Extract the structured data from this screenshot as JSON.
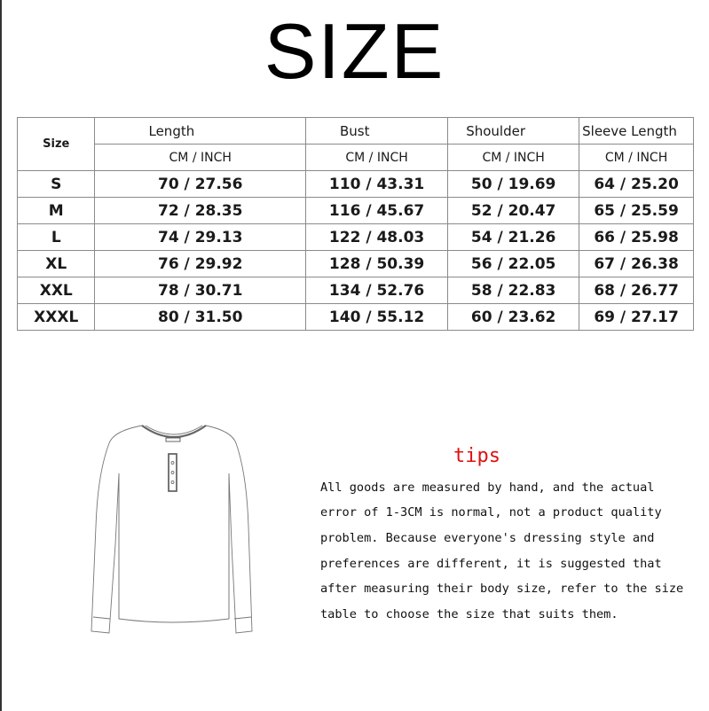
{
  "title": "SIZE",
  "table": {
    "size_header": "Size",
    "columns": [
      "Length",
      "Bust",
      "Shoulder",
      "Sleeve Length"
    ],
    "unit_label": "CM  /  INCH",
    "rows": [
      [
        "S",
        "70 / 27.56",
        "110 / 43.31",
        "50 / 19.69",
        "64 / 25.20"
      ],
      [
        "M",
        "72 / 28.35",
        "116 / 45.67",
        "52 / 20.47",
        "65 / 25.59"
      ],
      [
        "L",
        "74 / 29.13",
        "122 / 48.03",
        "54 / 21.26",
        "66 / 25.98"
      ],
      [
        "XL",
        "76 / 29.92",
        "128 / 50.39",
        "56 / 22.05",
        "67 / 26.38"
      ],
      [
        "XXL",
        "78 / 30.71",
        "134 / 52.76",
        "58 / 22.83",
        "68 / 26.77"
      ],
      [
        "XXXL",
        "80 / 31.50",
        "140 / 55.12",
        "60 / 23.62",
        "69 / 27.17"
      ]
    ]
  },
  "tips": {
    "title": "tips",
    "title_color": "#dd1111",
    "lines": [
      "All goods are measured by hand, and the actual",
      "error of 1-3CM is normal, not a product quality",
      "problem. Because everyone's dressing style and",
      "preferences are different, it is suggested that",
      "after measuring their body size, refer to the size",
      "table to choose the size that suits them."
    ]
  },
  "illustration": "henley-long-sleeve-shirt"
}
